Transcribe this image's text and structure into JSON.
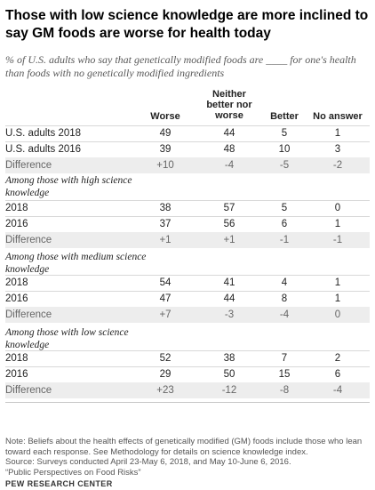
{
  "title": "Those with low science knowledge are more inclined to say GM foods are worse for health today",
  "subtitle": "% of U.S. adults who say that genetically modified foods are ____ for one's health than foods with no genetically modified ingredients",
  "chart_data": {
    "type": "table",
    "columns": [
      "Worse",
      "Neither better nor worse",
      "Better",
      "No answer"
    ],
    "groups": [
      {
        "heading": "",
        "rows": [
          {
            "label": "U.S. adults 2018",
            "values": [
              "49",
              "44",
              "5",
              "1"
            ]
          },
          {
            "label": "U.S. adults 2016",
            "values": [
              "39",
              "48",
              "10",
              "3"
            ]
          },
          {
            "label": "Difference",
            "values": [
              "+10",
              "-4",
              "-5",
              "-2"
            ],
            "is_difference": true
          }
        ]
      },
      {
        "heading": "Among those with high science knowledge",
        "rows": [
          {
            "label": "2018",
            "values": [
              "38",
              "57",
              "5",
              "0"
            ]
          },
          {
            "label": "2016",
            "values": [
              "37",
              "56",
              "6",
              "1"
            ]
          },
          {
            "label": "Difference",
            "values": [
              "+1",
              "+1",
              "-1",
              "-1"
            ],
            "is_difference": true
          }
        ]
      },
      {
        "heading": "Among those with medium science knowledge",
        "rows": [
          {
            "label": "2018",
            "values": [
              "54",
              "41",
              "4",
              "1"
            ]
          },
          {
            "label": "2016",
            "values": [
              "47",
              "44",
              "8",
              "1"
            ]
          },
          {
            "label": "Difference",
            "values": [
              "+7",
              "-3",
              "-4",
              "0"
            ],
            "is_difference": true
          }
        ]
      },
      {
        "heading": "Among those with low science knowledge",
        "rows": [
          {
            "label": "2018",
            "values": [
              "52",
              "38",
              "7",
              "2"
            ]
          },
          {
            "label": "2016",
            "values": [
              "29",
              "50",
              "15",
              "6"
            ]
          },
          {
            "label": "Difference",
            "values": [
              "+23",
              "-12",
              "-8",
              "-4"
            ],
            "is_difference": true
          }
        ]
      }
    ]
  },
  "note": "Note: Beliefs about the health effects of genetically modified (GM) foods include those who lean toward each response. See Methodology for details on science knowledge index.",
  "source": "Source: Surveys conducted April 23-May 6, 2018, and May 10-June 6, 2016.",
  "report": "“Public Perspectives on Food Risks”",
  "brand": "PEW RESEARCH CENTER",
  "colors": {
    "difference_row_bg": "#ededed",
    "rule": "#d8d8d8",
    "subtitle": "#595959"
  }
}
